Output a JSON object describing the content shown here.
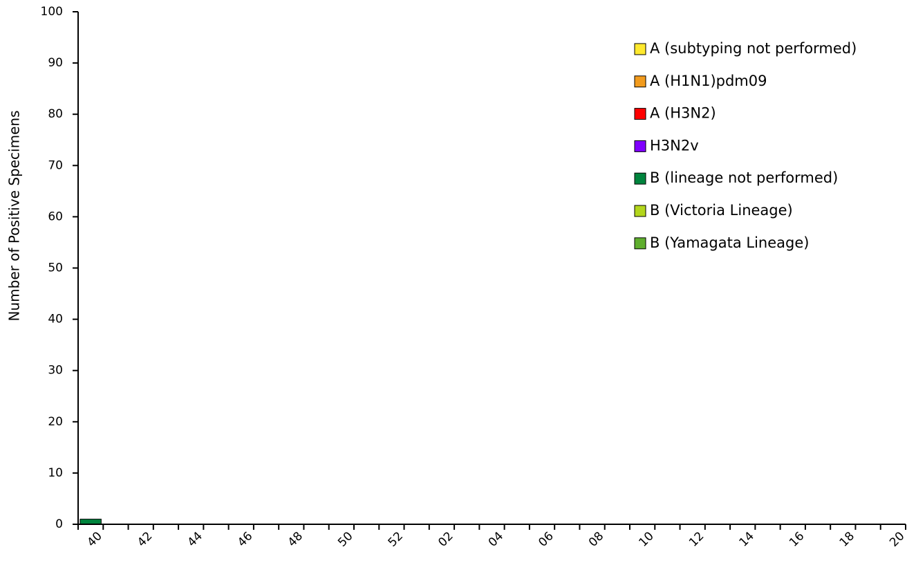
{
  "chart_data": {
    "type": "stacked-bar",
    "y_label": "Number of Positive Specimens",
    "categories": [
      "40",
      null,
      "42",
      null,
      "44",
      null,
      "46",
      null,
      "48",
      null,
      "50",
      null,
      "52",
      null,
      "02",
      null,
      "04",
      null,
      "06",
      null,
      "08",
      null,
      "10",
      null,
      "12",
      null,
      "14",
      null,
      "16",
      null,
      "18",
      null,
      "20"
    ],
    "series": [
      {
        "name": "A (subtyping not performed)",
        "color": "#ffe92e",
        "values": [
          0,
          0,
          0,
          0,
          0,
          0,
          0,
          0,
          0,
          0,
          0,
          0,
          0,
          0,
          0,
          0,
          0,
          0,
          0,
          0,
          0,
          0,
          0,
          0,
          0,
          0,
          0,
          0,
          0,
          0,
          0,
          0,
          0
        ]
      },
      {
        "name": "A (H1N1)pdm09",
        "color": "#f29b1d",
        "values": [
          0,
          0,
          0,
          0,
          0,
          0,
          0,
          0,
          0,
          0,
          0,
          0,
          0,
          0,
          0,
          0,
          0,
          0,
          0,
          0,
          0,
          0,
          0,
          0,
          0,
          0,
          0,
          0,
          0,
          0,
          0,
          0,
          0
        ]
      },
      {
        "name": "A (H3N2)",
        "color": "#ff0000",
        "values": [
          0,
          0,
          0,
          0,
          0,
          0,
          0,
          0,
          0,
          0,
          0,
          0,
          0,
          0,
          0,
          0,
          0,
          0,
          0,
          0,
          0,
          0,
          0,
          0,
          0,
          0,
          0,
          0,
          0,
          0,
          0,
          0,
          0
        ]
      },
      {
        "name": "H3N2v",
        "color": "#8000ff",
        "values": [
          0,
          0,
          0,
          0,
          0,
          0,
          0,
          0,
          0,
          0,
          0,
          0,
          0,
          0,
          0,
          0,
          0,
          0,
          0,
          0,
          0,
          0,
          0,
          0,
          0,
          0,
          0,
          0,
          0,
          0,
          0,
          0,
          0
        ]
      },
      {
        "name": "B (lineage not performed)",
        "color": "#00843d",
        "values": [
          1,
          0,
          0,
          0,
          0,
          0,
          0,
          0,
          0,
          0,
          0,
          0,
          0,
          0,
          0,
          0,
          0,
          0,
          0,
          0,
          0,
          0,
          0,
          0,
          0,
          0,
          0,
          0,
          0,
          0,
          0,
          0,
          0
        ]
      },
      {
        "name": "B (Victoria Lineage)",
        "color": "#b3d61c",
        "values": [
          0,
          0,
          0,
          0,
          0,
          0,
          0,
          0,
          0,
          0,
          0,
          0,
          0,
          0,
          0,
          0,
          0,
          0,
          0,
          0,
          0,
          0,
          0,
          0,
          0,
          0,
          0,
          0,
          0,
          0,
          0,
          0,
          0
        ]
      },
      {
        "name": "B (Yamagata Lineage)",
        "color": "#5fae2e",
        "values": [
          0,
          0,
          0,
          0,
          0,
          0,
          0,
          0,
          0,
          0,
          0,
          0,
          0,
          0,
          0,
          0,
          0,
          0,
          0,
          0,
          0,
          0,
          0,
          0,
          0,
          0,
          0,
          0,
          0,
          0,
          0,
          0,
          0
        ]
      }
    ],
    "ylim": [
      0,
      100
    ],
    "yticks": [
      0,
      10,
      20,
      30,
      40,
      50,
      60,
      70,
      80,
      90,
      100
    ],
    "grid": false,
    "legend": "top-right"
  }
}
